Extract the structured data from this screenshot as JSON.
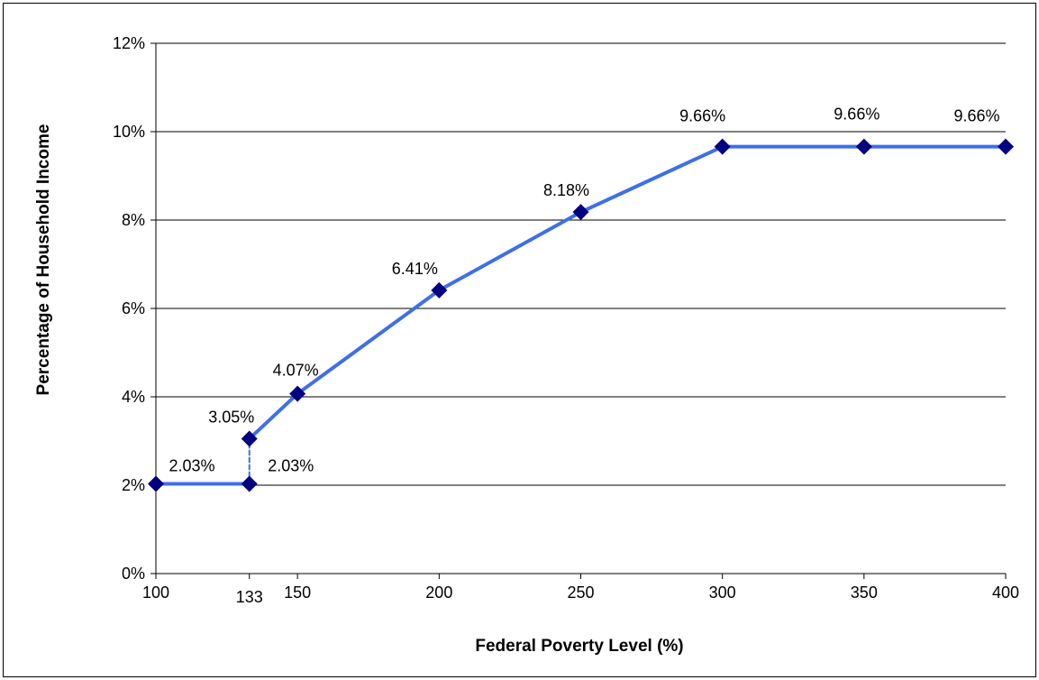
{
  "chart_data": {
    "type": "line",
    "title": "",
    "xlabel": "Federal Poverty Level (%)",
    "ylabel": "Percentage of Household Income",
    "xlim": [
      100,
      400
    ],
    "ylim": [
      0,
      12
    ],
    "x_ticks": [
      100,
      133,
      150,
      200,
      250,
      300,
      350,
      400
    ],
    "y_ticks": [
      0,
      2,
      4,
      6,
      8,
      10,
      12
    ],
    "x_tick_labels": [
      "100",
      "133",
      "150",
      "200",
      "250",
      "300",
      "350",
      "400"
    ],
    "y_tick_labels": [
      "0%",
      "2%",
      "4%",
      "6%",
      "8%",
      "10%",
      "12%"
    ],
    "grid": "horizontal",
    "legend": "none",
    "series": [
      {
        "color": "#3f6fe6",
        "marker_color": "#000080",
        "points": [
          {
            "x": 100,
            "y": 2.03,
            "label": "2.03%"
          },
          {
            "x": 133,
            "y": 2.03,
            "label": "2.03%"
          },
          {
            "x": 133,
            "y": 3.05,
            "label": "3.05%"
          },
          {
            "x": 150,
            "y": 4.07,
            "label": "4.07%"
          },
          {
            "x": 200,
            "y": 6.41,
            "label": "6.41%"
          },
          {
            "x": 250,
            "y": 8.18,
            "label": "8.18%"
          },
          {
            "x": 300,
            "y": 9.66,
            "label": "9.66%"
          },
          {
            "x": 350,
            "y": 9.66,
            "label": "9.66%"
          },
          {
            "x": 400,
            "y": 9.66,
            "label": "9.66%"
          }
        ],
        "dashed_segment": [
          1,
          2
        ]
      }
    ]
  }
}
